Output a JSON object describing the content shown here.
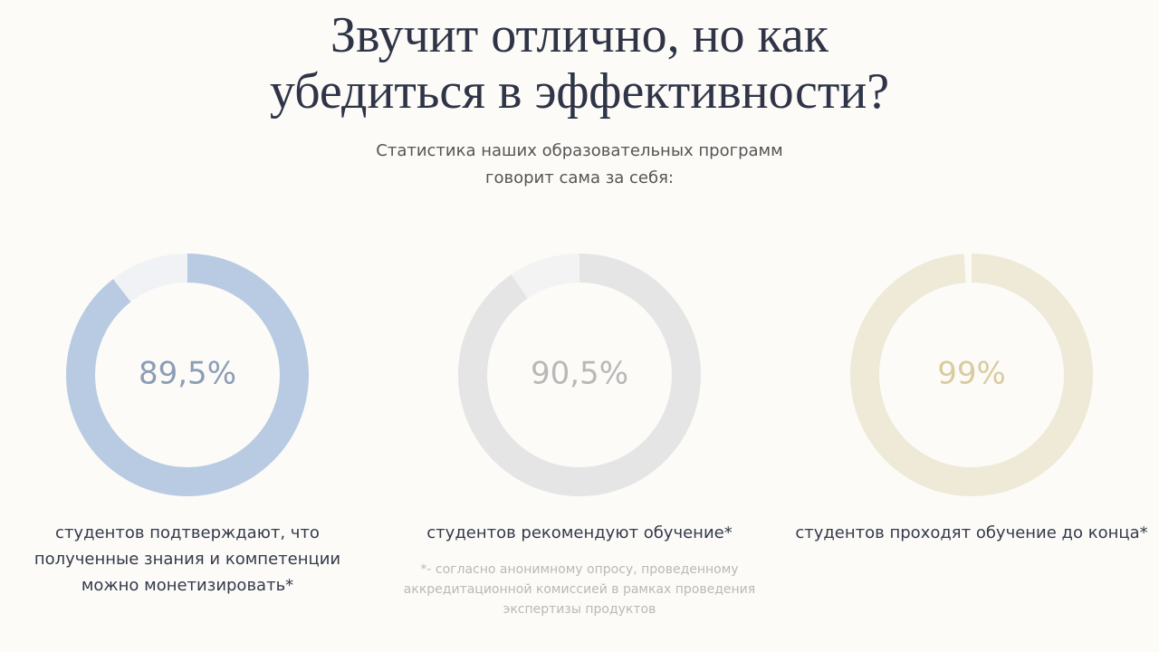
{
  "header": {
    "title": "Звучит отлично, но как убедиться в эффективности?",
    "subtitle": "Статистика наших образовательных программ говорит сама за себя:"
  },
  "chart_data": [
    {
      "type": "donut",
      "values": [
        89.5
      ],
      "value_labels": [
        "89,5%"
      ],
      "color": "#b9cbe2",
      "track_color": "#f1f2f5",
      "label_color": "#8c9db6",
      "caption": "студентов подтверждают, что полученные знания и компетенции можно монетизировать*"
    },
    {
      "type": "donut",
      "values": [
        90.5
      ],
      "value_labels": [
        "90,5%"
      ],
      "color": "#e5e5e5",
      "track_color": "#f3f3f4",
      "label_color": "#b8b8b8",
      "caption": "студентов рекомендуют обучение*"
    },
    {
      "type": "donut",
      "values": [
        99
      ],
      "value_labels": [
        "99%"
      ],
      "color": "#eeead7",
      "track_color": "#fbfaf4",
      "label_color": "#d8cc9e",
      "caption": "студентов проходят обучение до конца*"
    }
  ],
  "footnote": "*- согласно анонимному опросу, проведенному аккредитационной комиссией в рамках проведения экспертизы продуктов"
}
